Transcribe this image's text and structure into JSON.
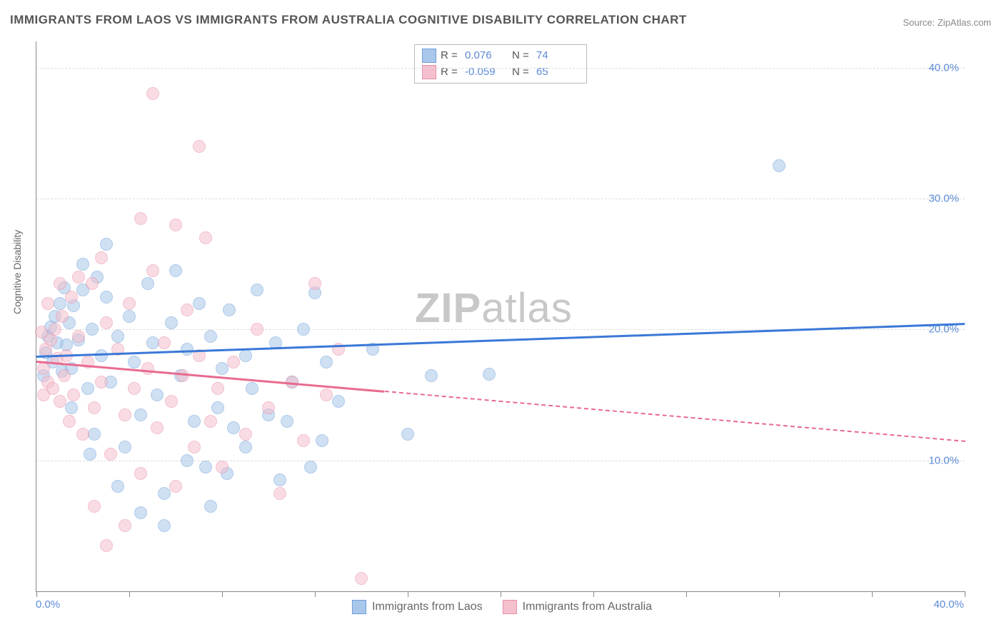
{
  "title": "IMMIGRANTS FROM LAOS VS IMMIGRANTS FROM AUSTRALIA COGNITIVE DISABILITY CORRELATION CHART",
  "source": "Source: ZipAtlas.com",
  "ylabel": "Cognitive Disability",
  "watermark_zip": "ZIP",
  "watermark_atlas": "atlas",
  "chart": {
    "type": "scatter",
    "xlim": [
      0,
      40
    ],
    "ylim": [
      0,
      42
    ],
    "xtick_positions": [
      0,
      4,
      8,
      12,
      16,
      20,
      24,
      28,
      32,
      36,
      40
    ],
    "ytick_values": [
      10,
      20,
      30,
      40
    ],
    "ytick_labels": [
      "10.0%",
      "20.0%",
      "30.0%",
      "40.0%"
    ],
    "xmin_label": "0.0%",
    "xmax_label": "40.0%",
    "background_color": "#ffffff",
    "grid_color": "#dddddd",
    "marker_size": 16,
    "series": [
      {
        "name": "Immigrants from Laos",
        "color_fill": "#a9c7eb",
        "color_stroke": "#6f9fd8",
        "r_value": "0.076",
        "n_value": "74",
        "trend": {
          "x1": 0,
          "y1": 18.0,
          "x2": 40,
          "y2": 20.5,
          "solid_end_x": 40,
          "color": "#3b78d8"
        },
        "points": [
          [
            0.4,
            18.2
          ],
          [
            0.5,
            19.5
          ],
          [
            0.6,
            20.2
          ],
          [
            0.7,
            17.5
          ],
          [
            0.8,
            21.0
          ],
          [
            0.9,
            19.0
          ],
          [
            1.0,
            22.0
          ],
          [
            1.1,
            16.8
          ],
          [
            1.2,
            23.2
          ],
          [
            1.3,
            18.8
          ],
          [
            1.4,
            20.5
          ],
          [
            1.5,
            17.0
          ],
          [
            1.6,
            21.8
          ],
          [
            1.8,
            19.2
          ],
          [
            2.0,
            23.0
          ],
          [
            2.2,
            15.5
          ],
          [
            2.4,
            20.0
          ],
          [
            2.5,
            12.0
          ],
          [
            2.6,
            24.0
          ],
          [
            2.8,
            18.0
          ],
          [
            3.0,
            22.5
          ],
          [
            3.2,
            16.0
          ],
          [
            3.5,
            19.5
          ],
          [
            3.8,
            11.0
          ],
          [
            4.0,
            21.0
          ],
          [
            4.2,
            17.5
          ],
          [
            4.5,
            13.5
          ],
          [
            4.8,
            23.5
          ],
          [
            5.0,
            19.0
          ],
          [
            5.2,
            15.0
          ],
          [
            5.5,
            7.5
          ],
          [
            5.8,
            20.5
          ],
          [
            6.0,
            24.5
          ],
          [
            6.2,
            16.5
          ],
          [
            6.5,
            18.5
          ],
          [
            6.8,
            13.0
          ],
          [
            7.0,
            22.0
          ],
          [
            7.3,
            9.5
          ],
          [
            7.5,
            19.5
          ],
          [
            7.8,
            14.0
          ],
          [
            8.0,
            17.0
          ],
          [
            8.3,
            21.5
          ],
          [
            8.5,
            12.5
          ],
          [
            9.0,
            18.0
          ],
          [
            9.3,
            15.5
          ],
          [
            9.5,
            23.0
          ],
          [
            10.0,
            13.5
          ],
          [
            10.3,
            19.0
          ],
          [
            10.5,
            8.5
          ],
          [
            11.0,
            16.0
          ],
          [
            11.5,
            20.0
          ],
          [
            12.0,
            22.8
          ],
          [
            12.3,
            11.5
          ],
          [
            12.5,
            17.5
          ],
          [
            13.0,
            14.5
          ],
          [
            17.0,
            16.5
          ],
          [
            19.5,
            16.6
          ],
          [
            14.5,
            18.5
          ],
          [
            16.0,
            12.0
          ],
          [
            4.5,
            6.0
          ],
          [
            5.5,
            5.0
          ],
          [
            2.0,
            25.0
          ],
          [
            3.0,
            26.5
          ],
          [
            1.5,
            14.0
          ],
          [
            2.3,
            10.5
          ],
          [
            3.5,
            8.0
          ],
          [
            6.5,
            10.0
          ],
          [
            7.5,
            6.5
          ],
          [
            8.2,
            9.0
          ],
          [
            9.0,
            11.0
          ],
          [
            10.8,
            13.0
          ],
          [
            11.8,
            9.5
          ],
          [
            32.0,
            32.5
          ],
          [
            0.3,
            16.5
          ]
        ]
      },
      {
        "name": "Immigrants from Australia",
        "color_fill": "#f5c0cd",
        "color_stroke": "#e88fa8",
        "r_value": "-0.059",
        "n_value": "65",
        "trend": {
          "x1": 0,
          "y1": 17.6,
          "x2": 40,
          "y2": 11.5,
          "solid_end_x": 15,
          "color": "#e86b8f"
        },
        "points": [
          [
            0.3,
            17.0
          ],
          [
            0.4,
            18.5
          ],
          [
            0.5,
            16.0
          ],
          [
            0.6,
            19.2
          ],
          [
            0.7,
            15.5
          ],
          [
            0.8,
            20.0
          ],
          [
            0.9,
            17.8
          ],
          [
            1.0,
            14.5
          ],
          [
            1.1,
            21.0
          ],
          [
            1.2,
            16.5
          ],
          [
            1.3,
            18.0
          ],
          [
            1.4,
            13.0
          ],
          [
            1.5,
            22.5
          ],
          [
            1.6,
            15.0
          ],
          [
            1.8,
            19.5
          ],
          [
            2.0,
            12.0
          ],
          [
            2.2,
            17.5
          ],
          [
            2.4,
            23.5
          ],
          [
            2.5,
            14.0
          ],
          [
            2.8,
            16.0
          ],
          [
            3.0,
            20.5
          ],
          [
            3.2,
            10.5
          ],
          [
            3.5,
            18.5
          ],
          [
            3.8,
            13.5
          ],
          [
            4.0,
            22.0
          ],
          [
            4.2,
            15.5
          ],
          [
            4.5,
            9.0
          ],
          [
            4.8,
            17.0
          ],
          [
            5.0,
            24.5
          ],
          [
            5.2,
            12.5
          ],
          [
            5.5,
            19.0
          ],
          [
            5.8,
            14.5
          ],
          [
            6.0,
            8.0
          ],
          [
            6.3,
            16.5
          ],
          [
            6.5,
            21.5
          ],
          [
            6.8,
            11.0
          ],
          [
            7.0,
            18.0
          ],
          [
            7.3,
            27.0
          ],
          [
            7.5,
            13.0
          ],
          [
            7.8,
            15.5
          ],
          [
            8.0,
            9.5
          ],
          [
            8.5,
            17.5
          ],
          [
            9.0,
            12.0
          ],
          [
            9.5,
            20.0
          ],
          [
            10.0,
            14.0
          ],
          [
            10.5,
            7.5
          ],
          [
            11.0,
            16.0
          ],
          [
            11.5,
            11.5
          ],
          [
            12.0,
            23.5
          ],
          [
            12.5,
            15.0
          ],
          [
            13.0,
            18.5
          ],
          [
            4.5,
            28.5
          ],
          [
            3.0,
            3.5
          ],
          [
            3.8,
            5.0
          ],
          [
            2.5,
            6.5
          ],
          [
            5.0,
            38.0
          ],
          [
            7.0,
            34.0
          ],
          [
            1.8,
            24.0
          ],
          [
            0.5,
            22.0
          ],
          [
            1.0,
            23.5
          ],
          [
            2.8,
            25.5
          ],
          [
            6.0,
            28.0
          ],
          [
            14.0,
            1.0
          ],
          [
            0.2,
            19.8
          ],
          [
            0.3,
            15.0
          ]
        ]
      }
    ]
  },
  "legend_bottom": [
    {
      "label": "Immigrants from Laos",
      "fill": "#a9c7eb",
      "stroke": "#6f9fd8"
    },
    {
      "label": "Immigrants from Australia",
      "fill": "#f5c0cd",
      "stroke": "#e88fa8"
    }
  ]
}
